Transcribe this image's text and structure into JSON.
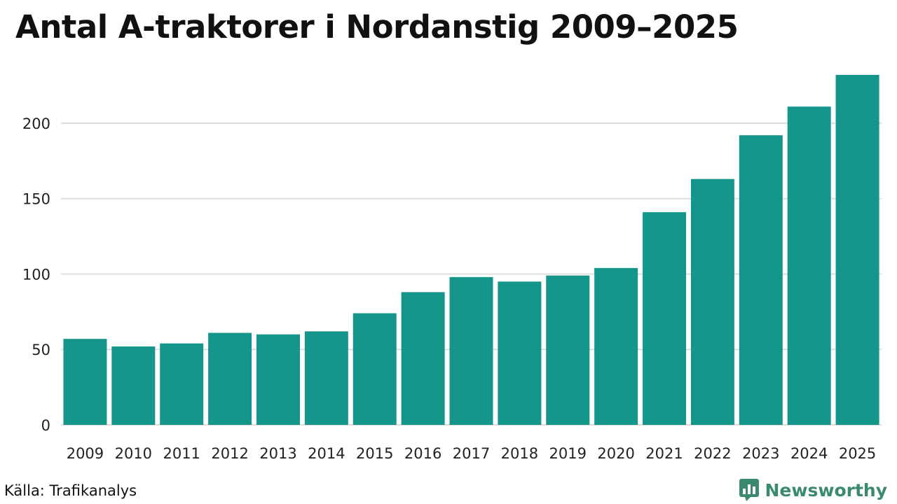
{
  "chart_data": {
    "type": "bar",
    "title": "Antal A-traktorer i Nordanstig 2009–2025",
    "xlabel": "",
    "ylabel": "",
    "categories": [
      "2009",
      "2010",
      "2011",
      "2012",
      "2013",
      "2014",
      "2015",
      "2016",
      "2017",
      "2018",
      "2019",
      "2020",
      "2021",
      "2022",
      "2023",
      "2024",
      "2025"
    ],
    "values": [
      57,
      52,
      54,
      61,
      60,
      62,
      74,
      88,
      98,
      95,
      99,
      104,
      141,
      163,
      192,
      211,
      232
    ],
    "ylim": [
      0,
      232
    ],
    "yticks": [
      0,
      50,
      100,
      150,
      200
    ],
    "grid": true,
    "bar_color": "#15968a",
    "grid_color": "#dddddd"
  },
  "footer": {
    "source": "Källa: Trafikanalys",
    "brand": "Newsworthy",
    "brand_color": "#3b8a6e"
  },
  "icons": {
    "brand_logo": "bar-chart-bubble-icon"
  }
}
